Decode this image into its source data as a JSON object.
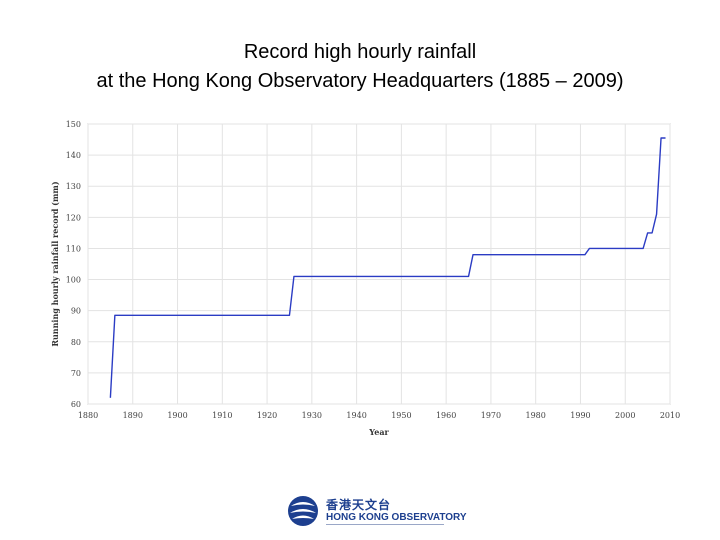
{
  "header": {
    "title_line1": "Record high hourly rainfall",
    "title_line2": "at the Hong Kong Observatory Headquarters (1885 – 2009)"
  },
  "chart_data": {
    "type": "line",
    "title": "Record high hourly rainfall at the Hong Kong Observatory Headquarters (1885 – 2009)",
    "xlabel": "Year",
    "ylabel": "Running hourly rainfall record (mm)",
    "xlim": [
      1880,
      2010
    ],
    "ylim": [
      60,
      150
    ],
    "xticks": [
      "1880",
      "1890",
      "1900",
      "1910",
      "1920",
      "1930",
      "1940",
      "1950",
      "1960",
      "1970",
      "1980",
      "1990",
      "2000",
      "2010"
    ],
    "yticks": [
      "60",
      "70",
      "80",
      "90",
      "100",
      "110",
      "120",
      "130",
      "140",
      "150"
    ],
    "grid": true,
    "series": [
      {
        "color": "#2b3cc4",
        "x": [
          1885,
          1886,
          1925,
          1926,
          1965,
          1966,
          1991,
          1992,
          2004,
          2005,
          2006,
          2007,
          2008,
          2009
        ],
        "y": [
          62,
          88.5,
          88.5,
          101,
          101,
          108,
          108,
          110,
          110,
          115,
          115,
          121,
          145.5,
          145.5
        ]
      }
    ]
  },
  "logo": {
    "name_cn": "香港天文台",
    "name_en": "HONG KONG OBSERVATORY",
    "color": "#1d3f8f"
  }
}
